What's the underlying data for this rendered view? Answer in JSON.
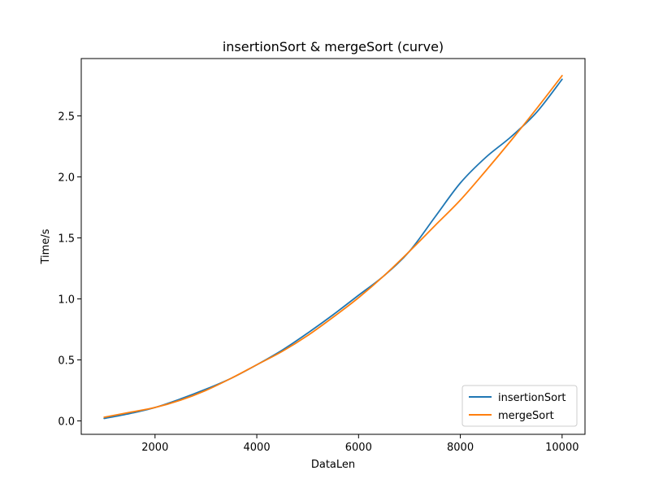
{
  "chart_data": {
    "type": "line",
    "title": "insertionSort & mergeSort (curve)",
    "xlabel": "DataLen",
    "ylabel": "Time/s",
    "xlim": [
      550,
      10450
    ],
    "ylim": [
      -0.11,
      2.97
    ],
    "xticks": [
      2000,
      4000,
      6000,
      8000,
      10000
    ],
    "xtick_labels": [
      "2000",
      "4000",
      "6000",
      "8000",
      "10000"
    ],
    "yticks": [
      0.0,
      0.5,
      1.0,
      1.5,
      2.0,
      2.5
    ],
    "ytick_labels": [
      "0.0",
      "0.5",
      "1.0",
      "1.5",
      "2.0",
      "2.5"
    ],
    "grid": false,
    "legend_position": "lower-right",
    "x": [
      1000,
      1500,
      2000,
      2500,
      3000,
      3500,
      4000,
      4500,
      5000,
      5500,
      6000,
      6500,
      7000,
      7500,
      8000,
      8500,
      9000,
      9500,
      10000
    ],
    "series": [
      {
        "name": "insertionSort",
        "color": "#1f77b4",
        "values": [
          0.02,
          0.06,
          0.11,
          0.18,
          0.26,
          0.35,
          0.46,
          0.58,
          0.72,
          0.87,
          1.03,
          1.19,
          1.39,
          1.67,
          1.95,
          2.16,
          2.33,
          2.53,
          2.8
        ]
      },
      {
        "name": "mergeSort",
        "color": "#ff7f0e",
        "values": [
          0.03,
          0.07,
          0.11,
          0.17,
          0.25,
          0.35,
          0.46,
          0.57,
          0.7,
          0.85,
          1.01,
          1.19,
          1.39,
          1.6,
          1.81,
          2.05,
          2.3,
          2.56,
          2.83
        ]
      }
    ]
  }
}
